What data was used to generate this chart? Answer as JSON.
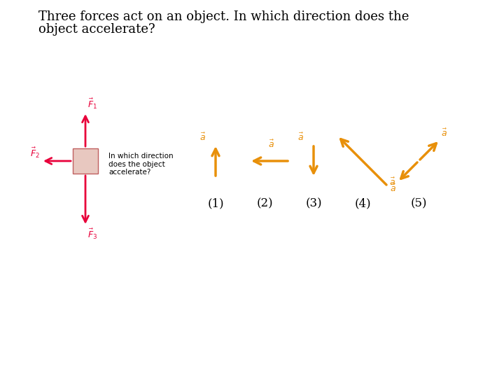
{
  "title_line1": "Three forces act on an object. In which direction does the",
  "title_line2": "object accelerate?",
  "title_fontsize": 13,
  "bg_color": "#ffffff",
  "crimson": "#e8003a",
  "orange": "#e8900a",
  "box_color": "#e8c8c0",
  "box_edge": "#c06060",
  "inner_text": "In which direction\ndoes the object\naccelerate?",
  "options": [
    "(1)",
    "(2)",
    "(3)",
    "(4)",
    "(5)"
  ],
  "fig_w": 7.2,
  "fig_h": 5.4,
  "dpi": 100
}
